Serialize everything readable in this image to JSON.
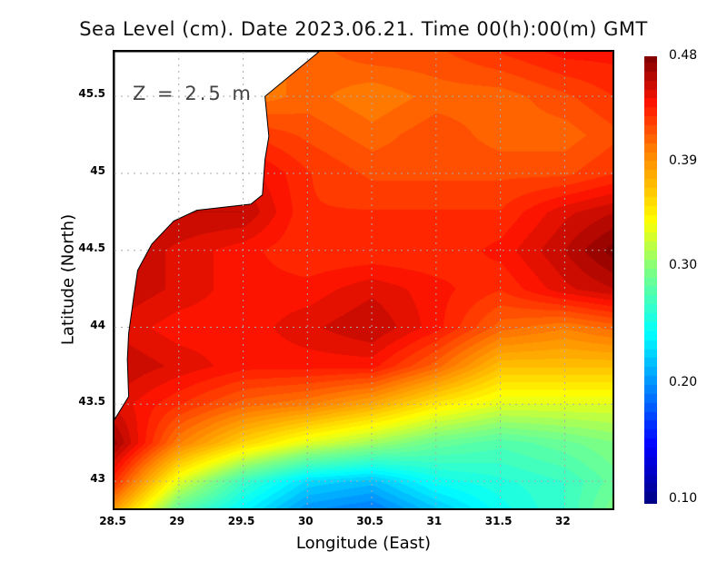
{
  "chart_data": {
    "type": "heatmap",
    "title": "Sea Level (cm). Date 2023.06.21. Time 00(h):00(m) GMT",
    "annotation": "Z = 2.5 m",
    "xlabel": "Longitude (East)",
    "ylabel": "Latitude (North)",
    "xlim": [
      28.5,
      32.4
    ],
    "ylim": [
      42.8,
      45.79
    ],
    "xticks": [
      "28.5",
      "29",
      "29.5",
      "30",
      "30.5",
      "31",
      "31.5",
      "32"
    ],
    "xtick_values": [
      28.5,
      29,
      29.5,
      30,
      30.5,
      31,
      31.5,
      32
    ],
    "yticks": [
      "43",
      "43.5",
      "44",
      "44.5",
      "45",
      "45.5"
    ],
    "ytick_values": [
      43,
      43.5,
      44,
      44.5,
      45,
      45.5
    ],
    "grid": true,
    "colorbar": {
      "min": 0.1,
      "max": 0.48,
      "ticks": [
        "0.10",
        "0.20",
        "0.30",
        "0.39",
        "0.48"
      ],
      "tick_values": [
        0.1,
        0.2,
        0.3,
        0.39,
        0.48
      ]
    },
    "lons": [
      28.5,
      29,
      29.5,
      30,
      30.5,
      31,
      31.5,
      32,
      32.4
    ],
    "lats": [
      45.79,
      45.5,
      45.25,
      45,
      44.75,
      44.5,
      44.25,
      44,
      43.75,
      43.5,
      43.25,
      43,
      42.8
    ],
    "values": [
      [
        0.4,
        0.4,
        0.4,
        0.41,
        0.42,
        0.42,
        0.43,
        0.44,
        0.44
      ],
      [
        0.4,
        0.4,
        0.4,
        0.41,
        0.4,
        0.41,
        0.41,
        0.42,
        0.43
      ],
      [
        0.43,
        0.43,
        0.43,
        0.42,
        0.41,
        0.42,
        0.41,
        0.41,
        0.42
      ],
      [
        0.45,
        0.45,
        0.45,
        0.43,
        0.42,
        0.42,
        0.42,
        0.42,
        0.43
      ],
      [
        0.46,
        0.46,
        0.46,
        0.43,
        0.43,
        0.43,
        0.43,
        0.45,
        0.46
      ],
      [
        0.46,
        0.45,
        0.44,
        0.43,
        0.43,
        0.43,
        0.44,
        0.46,
        0.48
      ],
      [
        0.46,
        0.45,
        0.44,
        0.44,
        0.45,
        0.44,
        0.43,
        0.45,
        0.46
      ],
      [
        0.45,
        0.44,
        0.44,
        0.45,
        0.46,
        0.44,
        0.41,
        0.4,
        0.41
      ],
      [
        0.46,
        0.45,
        0.44,
        0.44,
        0.44,
        0.41,
        0.37,
        0.37,
        0.37
      ],
      [
        0.45,
        0.43,
        0.41,
        0.4,
        0.38,
        0.35,
        0.33,
        0.33,
        0.33
      ],
      [
        0.47,
        0.4,
        0.36,
        0.33,
        0.31,
        0.29,
        0.28,
        0.29,
        0.3
      ],
      [
        0.43,
        0.33,
        0.27,
        0.23,
        0.22,
        0.25,
        0.26,
        0.27,
        0.29
      ],
      [
        0.38,
        0.28,
        0.24,
        0.2,
        0.19,
        0.22,
        0.25,
        0.27,
        0.3
      ]
    ],
    "land": [
      [
        30.09,
        45.79
      ],
      [
        29.67,
        45.5
      ],
      [
        29.7,
        45.24
      ],
      [
        29.67,
        45.09
      ],
      [
        29.65,
        44.86
      ],
      [
        29.56,
        44.8
      ],
      [
        29.14,
        44.76
      ],
      [
        28.96,
        44.69
      ],
      [
        28.79,
        44.54
      ],
      [
        28.68,
        44.37
      ],
      [
        28.65,
        44.2
      ],
      [
        28.61,
        43.96
      ],
      [
        28.6,
        43.79
      ],
      [
        28.61,
        43.55
      ],
      [
        28.5,
        43.4
      ],
      [
        28.5,
        45.79
      ]
    ]
  }
}
